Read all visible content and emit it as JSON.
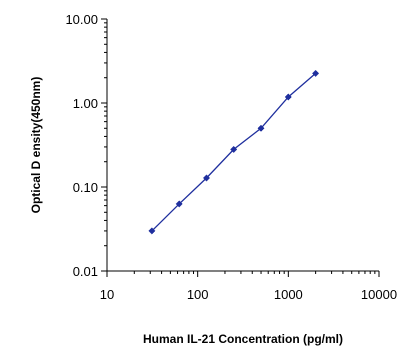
{
  "chart_data": {
    "type": "line",
    "title": "",
    "xlabel": "Human IL-21 Concentration (pg/ml)",
    "ylabel": "Optical D ensity(450nm)",
    "x_scale": "log",
    "y_scale": "log",
    "xlim": [
      10,
      10000
    ],
    "ylim": [
      0.01,
      10
    ],
    "x_ticks": [
      "10",
      "100",
      "1000",
      "10000"
    ],
    "y_ticks": [
      "10.00",
      "1.00",
      "0.10",
      "0.01"
    ],
    "grid": false,
    "legend": "none",
    "series": [
      {
        "color": "#1f2f9e",
        "x": [
          31.25,
          62.5,
          125,
          250,
          500,
          1000,
          2000
        ],
        "y": [
          0.03,
          0.063,
          0.128,
          0.28,
          0.5,
          1.18,
          2.25
        ]
      }
    ]
  }
}
